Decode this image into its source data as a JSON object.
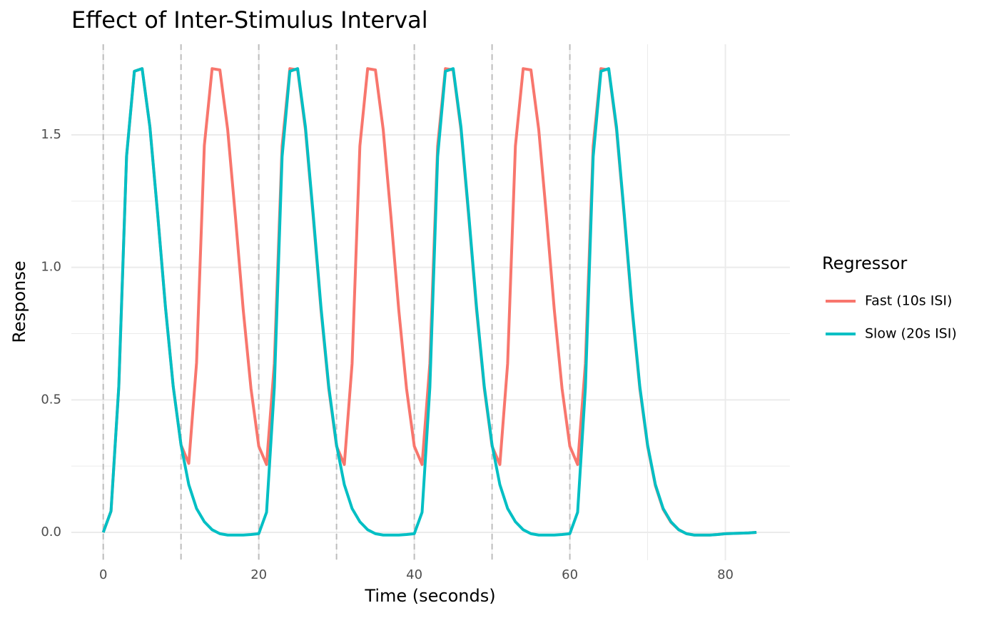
{
  "chart_data": {
    "type": "line",
    "title": "Effect of Inter-Stimulus Interval",
    "x_label": "Time (seconds)",
    "y_label": "Response",
    "legend_title": "Regressor",
    "x": [
      0,
      1,
      2,
      3,
      4,
      5,
      6,
      7,
      8,
      9,
      10,
      11,
      12,
      13,
      14,
      15,
      16,
      17,
      18,
      19,
      20,
      21,
      22,
      23,
      24,
      25,
      26,
      27,
      28,
      29,
      30,
      31,
      32,
      33,
      34,
      35,
      36,
      37,
      38,
      39,
      40,
      41,
      42,
      43,
      44,
      45,
      46,
      47,
      48,
      49,
      50,
      51,
      52,
      53,
      54,
      55,
      56,
      57,
      58,
      59,
      60,
      61,
      62,
      63,
      64,
      65,
      66,
      67,
      68,
      69,
      70,
      71,
      72,
      73,
      74,
      75,
      76,
      77,
      78,
      79,
      80,
      81,
      82,
      83,
      84
    ],
    "series": [
      {
        "name": "Fast (10s ISI)",
        "color": "#F8766D",
        "values": [
          0,
          0.08,
          0.55,
          1.42,
          1.74,
          1.75,
          1.53,
          1.2,
          0.85,
          0.55,
          0.33,
          0.26,
          0.64,
          1.46,
          1.75,
          1.745,
          1.52,
          1.19,
          0.84,
          0.542,
          0.325,
          0.256,
          0.637,
          1.458,
          1.75,
          1.745,
          1.52,
          1.19,
          0.84,
          0.542,
          0.325,
          0.256,
          0.637,
          1.458,
          1.75,
          1.745,
          1.52,
          1.19,
          0.84,
          0.542,
          0.325,
          0.256,
          0.637,
          1.458,
          1.75,
          1.745,
          1.52,
          1.19,
          0.84,
          0.542,
          0.325,
          0.256,
          0.637,
          1.458,
          1.75,
          1.745,
          1.52,
          1.19,
          0.84,
          0.542,
          0.325,
          0.256,
          0.637,
          1.458,
          1.75,
          1.745,
          1.52,
          1.19,
          0.84,
          0.542,
          0.325,
          0.176,
          0.087,
          0.038,
          0.01,
          -0.005,
          -0.01,
          -0.01,
          -0.01,
          -0.008,
          -0.005,
          -0.004,
          -0.003,
          -0.002,
          0
        ]
      },
      {
        "name": "Slow (20s ISI)",
        "color": "#00BFC4",
        "values": [
          0,
          0.08,
          0.55,
          1.42,
          1.74,
          1.75,
          1.53,
          1.2,
          0.85,
          0.55,
          0.33,
          0.18,
          0.09,
          0.04,
          0.01,
          -0.005,
          -0.01,
          -0.01,
          -0.01,
          -0.008,
          -0.005,
          0.076,
          0.547,
          1.418,
          1.74,
          1.75,
          1.53,
          1.2,
          0.85,
          0.55,
          0.33,
          0.18,
          0.09,
          0.04,
          0.01,
          -0.005,
          -0.01,
          -0.01,
          -0.01,
          -0.008,
          -0.005,
          0.076,
          0.547,
          1.418,
          1.74,
          1.75,
          1.53,
          1.2,
          0.85,
          0.55,
          0.33,
          0.18,
          0.09,
          0.04,
          0.01,
          -0.005,
          -0.01,
          -0.01,
          -0.01,
          -0.008,
          -0.005,
          0.076,
          0.547,
          1.418,
          1.74,
          1.75,
          1.53,
          1.2,
          0.85,
          0.55,
          0.33,
          0.18,
          0.09,
          0.04,
          0.01,
          -0.005,
          -0.01,
          -0.01,
          -0.01,
          -0.008,
          -0.005,
          -0.004,
          -0.003,
          -0.002,
          0
        ]
      }
    ],
    "event_lines": [
      0,
      10,
      20,
      30,
      40,
      50,
      60
    ],
    "xlim": [
      -4.1,
      88.3
    ],
    "ylim": [
      -0.105,
      1.842
    ],
    "xticks": [
      0,
      20,
      40,
      60,
      80
    ],
    "yticks": [
      {
        "value": 0,
        "label": "0.0"
      },
      0.5,
      {
        "value": 1,
        "label": "1.0"
      },
      1.5
    ],
    "x_minor_grid": [
      10,
      30,
      50,
      70
    ],
    "y_minor_grid": [
      0.25,
      0.75,
      1.25
    ],
    "grid": true
  }
}
